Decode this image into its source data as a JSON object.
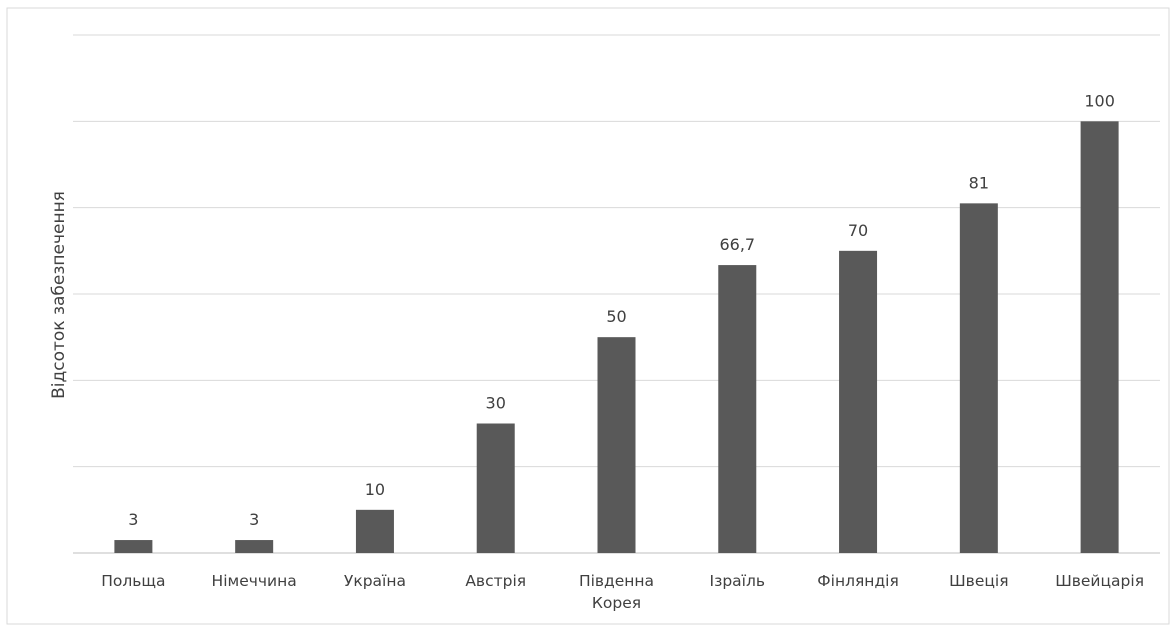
{
  "chart_data": {
    "type": "bar",
    "categories": [
      [
        "Польща"
      ],
      [
        "Німеччина"
      ],
      [
        "Україна"
      ],
      [
        "Австрія"
      ],
      [
        "Південна",
        "Корея"
      ],
      [
        "Ізраїль"
      ],
      [
        "Фінляндія"
      ],
      [
        "Швеція"
      ],
      [
        "Швейцарія"
      ]
    ],
    "values": [
      3,
      3,
      10,
      30,
      50,
      66.7,
      70,
      81,
      100
    ],
    "data_labels": [
      "3",
      "3",
      "10",
      "30",
      "50",
      "66,7",
      "70",
      "81",
      "100"
    ],
    "ylabel": "Відсоток забезпечення",
    "ylim": [
      0,
      120
    ],
    "gridline_step": 20,
    "grid": true,
    "bar_color": "#595959",
    "grid_color": "#d9d9d9"
  }
}
